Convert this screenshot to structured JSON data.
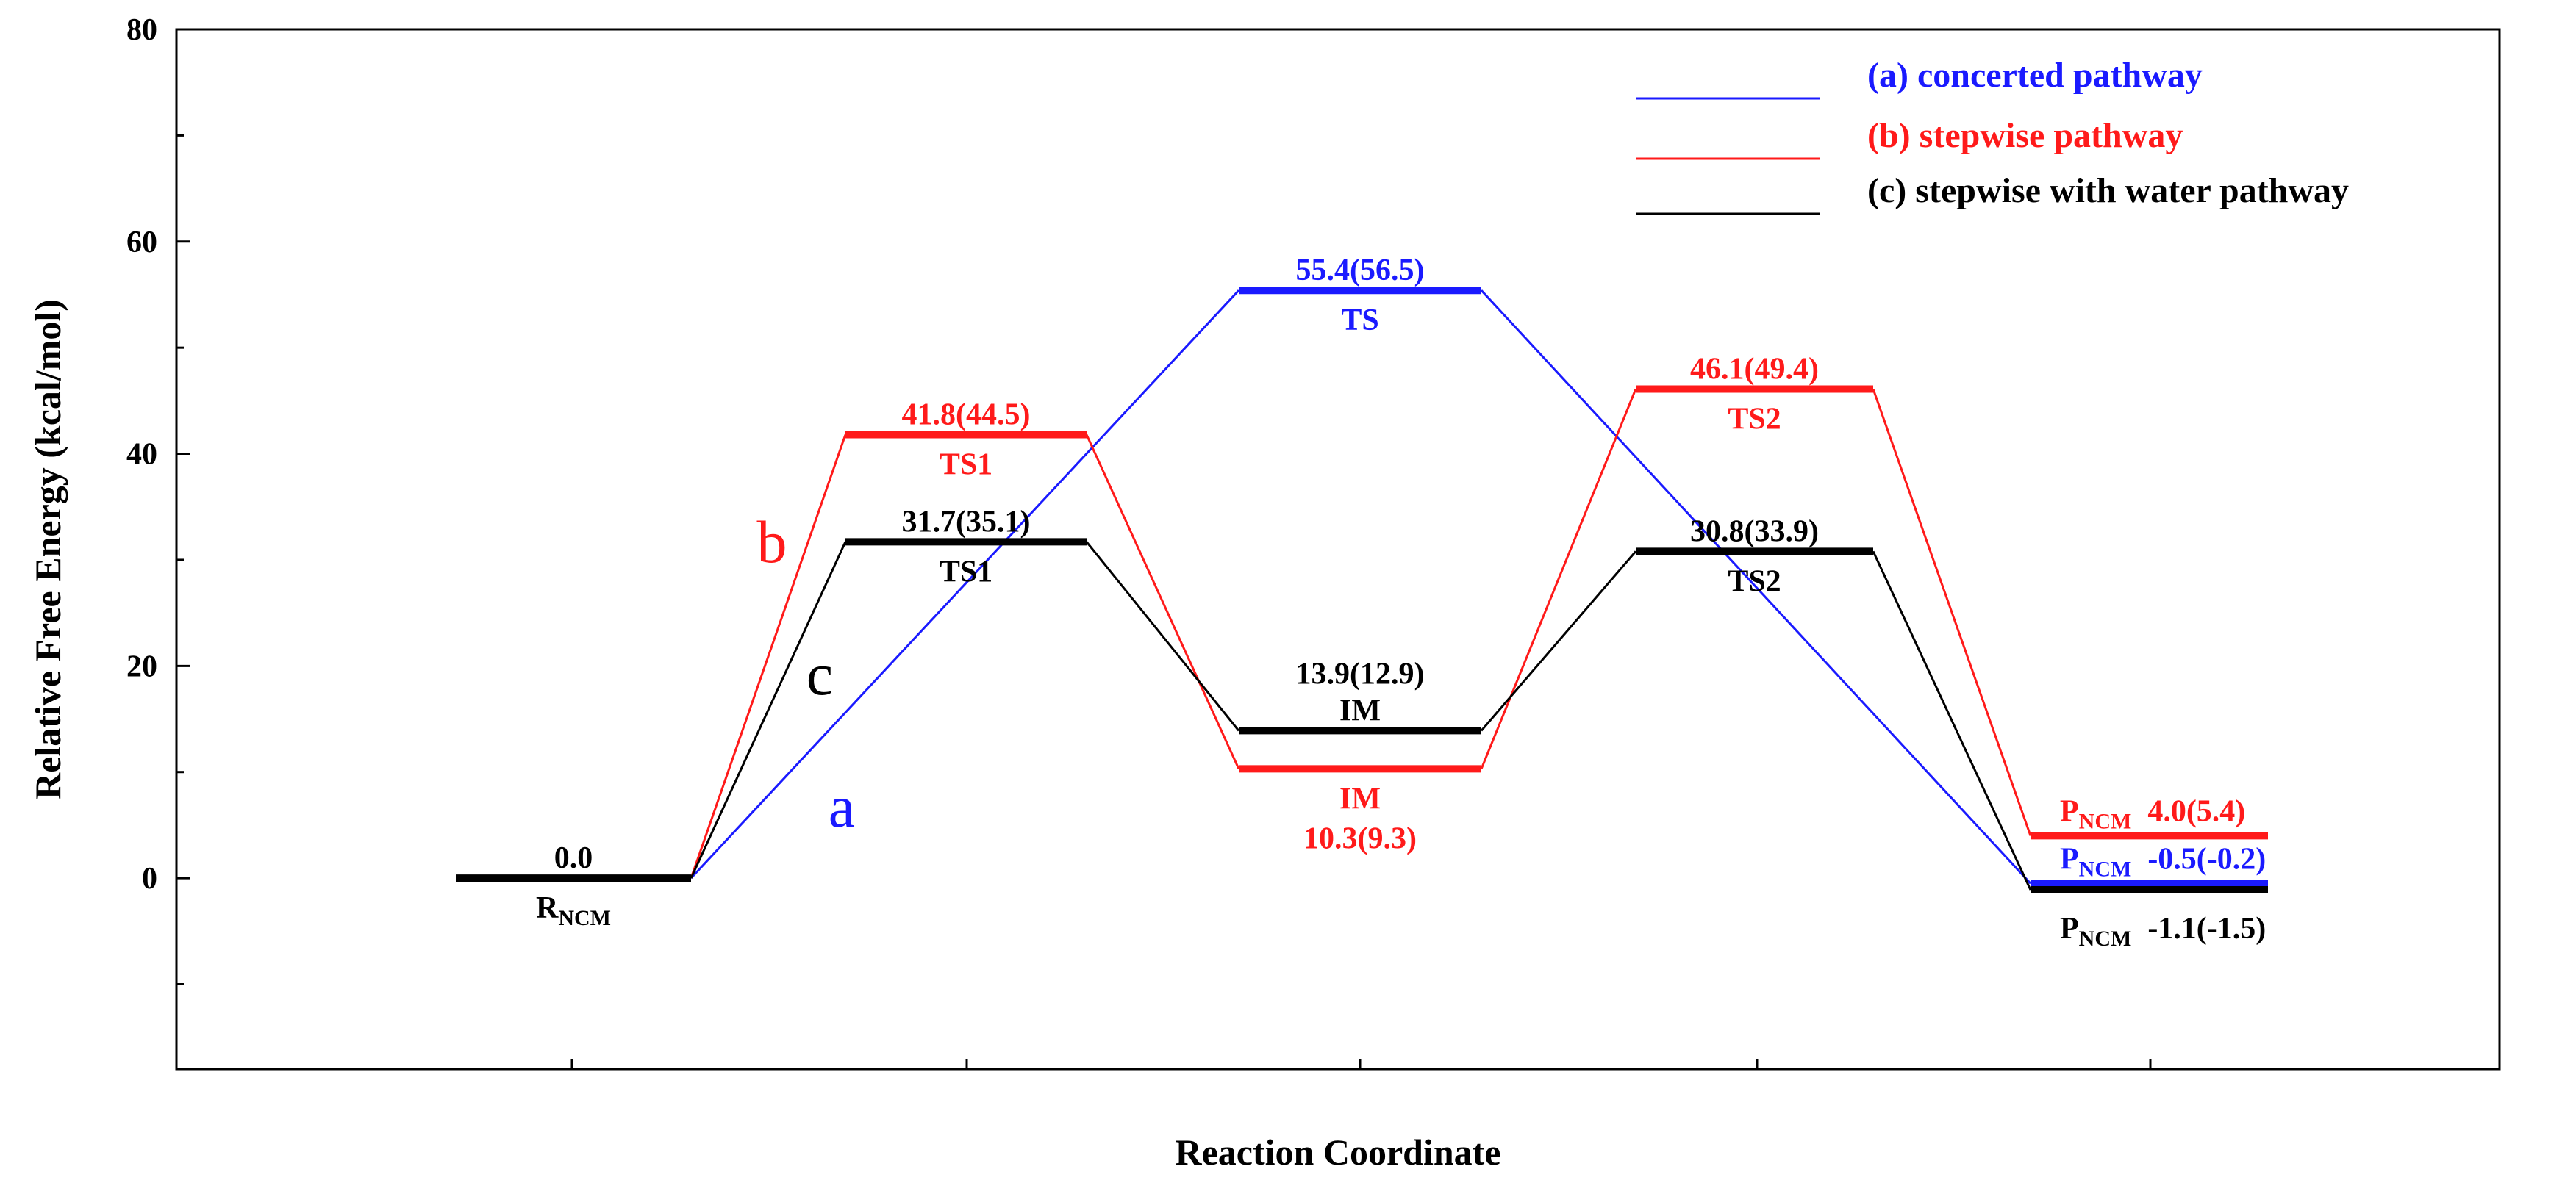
{
  "chart_data": {
    "type": "line",
    "title": "",
    "xlabel": "Reaction Coordinate",
    "ylabel": "Relative Free Energy (kcal/mol)",
    "ylim": [
      -18,
      80
    ],
    "yticks": [
      0,
      20,
      40,
      60,
      80
    ],
    "grid": false,
    "legend_position": "top-right",
    "colors": {
      "a": "#1a1aff",
      "b": "#ff1a1a",
      "c": "#000000"
    },
    "legend": [
      {
        "key": "a",
        "label": "(a) concerted pathway"
      },
      {
        "key": "b",
        "label": "(b) stepwise pathway"
      },
      {
        "key": "c",
        "label": "(c) stepwise with water pathway"
      }
    ],
    "series": [
      {
        "name": "(a) concerted pathway",
        "key": "a",
        "steps": [
          {
            "stage": 0,
            "species": "R_NCM",
            "energy": 0.0
          },
          {
            "stage": 2,
            "species": "TS",
            "energy": 55.4,
            "value_label": "55.4(56.5)"
          },
          {
            "stage": 4,
            "species": "P_NCM",
            "energy": -0.5,
            "value_label": "-0.5(-0.2)"
          }
        ]
      },
      {
        "name": "(b) stepwise pathway",
        "key": "b",
        "steps": [
          {
            "stage": 0,
            "species": "R_NCM",
            "energy": 0.0
          },
          {
            "stage": 1,
            "species": "TS1",
            "energy": 41.8,
            "value_label": "41.8(44.5)"
          },
          {
            "stage": 2,
            "species": "IM",
            "energy": 10.3,
            "value_label": "10.3(9.3)"
          },
          {
            "stage": 3,
            "species": "TS2",
            "energy": 46.1,
            "value_label": "46.1(49.4)"
          },
          {
            "stage": 4,
            "species": "P_NCM",
            "energy": 4.0,
            "value_label": "4.0(5.4)"
          }
        ]
      },
      {
        "name": "(c) stepwise with water pathway",
        "key": "c",
        "steps": [
          {
            "stage": 0,
            "species": "R_NCM",
            "energy": 0.0,
            "value_label": "0.0"
          },
          {
            "stage": 1,
            "species": "TS1",
            "energy": 31.7,
            "value_label": "31.7(35.1)"
          },
          {
            "stage": 2,
            "species": "IM",
            "energy": 13.9,
            "value_label": "13.9(12.9)"
          },
          {
            "stage": 3,
            "species": "TS2",
            "energy": 30.8,
            "value_label": "30.8(33.9)"
          },
          {
            "stage": 4,
            "species": "P_NCM",
            "energy": -1.1,
            "value_label": "-1.1(-1.5)"
          }
        ]
      }
    ],
    "level_labels": [
      {
        "key": "c",
        "stage": 0,
        "text": "0.0",
        "pos": "above"
      },
      {
        "key": "c",
        "stage": 0,
        "text": "R",
        "sub": "NCM",
        "pos": "below"
      },
      {
        "key": "b",
        "stage": 1,
        "text": "41.8(44.5)",
        "pos": "above"
      },
      {
        "key": "b",
        "stage": 1,
        "text": "TS1",
        "pos": "below"
      },
      {
        "key": "c",
        "stage": 1,
        "text": "31.7(35.1)",
        "pos": "above"
      },
      {
        "key": "c",
        "stage": 1,
        "text": "TS1",
        "pos": "below"
      },
      {
        "key": "a",
        "stage": 2,
        "text": "55.4(56.5)",
        "pos": "above"
      },
      {
        "key": "a",
        "stage": 2,
        "text": "TS",
        "pos": "below"
      },
      {
        "key": "c",
        "stage": 2,
        "text": "13.9(12.9)",
        "pos": "above2"
      },
      {
        "key": "c",
        "stage": 2,
        "text": "IM",
        "pos": "above"
      },
      {
        "key": "b",
        "stage": 2,
        "text": "IM",
        "pos": "below"
      },
      {
        "key": "b",
        "stage": 2,
        "text": "10.3(9.3)",
        "pos": "below2"
      },
      {
        "key": "b",
        "stage": 3,
        "text": "46.1(49.4)",
        "pos": "above"
      },
      {
        "key": "b",
        "stage": 3,
        "text": "TS2",
        "pos": "below"
      },
      {
        "key": "c",
        "stage": 3,
        "text": "30.8(33.9)",
        "pos": "above"
      },
      {
        "key": "c",
        "stage": 3,
        "text": "TS2",
        "pos": "below"
      },
      {
        "key": "b",
        "stage": 4,
        "text": "P",
        "sub": "NCM",
        "extra": "4.0(5.4)",
        "pos": "above-right"
      },
      {
        "key": "a",
        "stage": 4,
        "text": "P",
        "sub": "NCM",
        "extra": "-0.5(-0.2)",
        "pos": "above-right"
      },
      {
        "key": "c",
        "stage": 4,
        "text": "P",
        "sub": "NCM",
        "extra": "-1.1(-1.5)",
        "pos": "below-right"
      }
    ],
    "path_letters": [
      {
        "key": "b",
        "text": "b"
      },
      {
        "key": "c",
        "text": "c"
      },
      {
        "key": "a",
        "text": "a"
      }
    ]
  }
}
